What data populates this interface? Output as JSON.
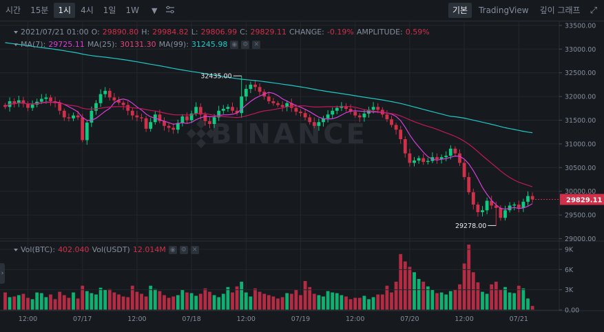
{
  "toolbar": {
    "intervals": [
      "시간",
      "15분",
      "1시",
      "4시",
      "1일",
      "1W"
    ],
    "active_interval": "1시",
    "views": [
      "기본",
      "TradingView",
      "깊이 그래프"
    ],
    "active_view": "기본"
  },
  "legend": {
    "date": "2021/07/21 01:00",
    "o_label": "O:",
    "o": "29890.80",
    "h_label": "H:",
    "h": "29984.82",
    "l_label": "L:",
    "l": "29806.99",
    "c_label": "C:",
    "c": "29829.11",
    "change_label": "CHANGE:",
    "change": "-0.19%",
    "amp_label": "AMPLITUDE:",
    "amp": "0.59%",
    "ma7_label": "MA(7):",
    "ma7": "29725.11",
    "ma25_label": "MA(25):",
    "ma25": "30131.30",
    "ma99_label": "MA(99):",
    "ma99": "31245.98",
    "vol_btc_label": "Vol(BTC):",
    "vol_btc": "402.040",
    "vol_usdt_label": "Vol(USDT)",
    "vol_usdt": "12.014M"
  },
  "watermark": "BINANCE",
  "colors": {
    "up": "#0ecb81",
    "down": "#cf304a",
    "ma7": "#d93fd9",
    "ma25": "#c2185b",
    "ma99": "#1dc9c9",
    "bg": "#161a1e",
    "grid": "#23272d"
  },
  "chart_data": {
    "type": "candlestick",
    "price_axis": {
      "ticks": [
        "33500.00",
        "33000.00",
        "32500.00",
        "32000.00",
        "31500.00",
        "31000.00",
        "30500.00",
        "30000.00",
        "29500.00",
        "29000.00"
      ],
      "range": [
        28950,
        33600
      ]
    },
    "volume_axis": {
      "ticks": [
        "9K",
        "6K",
        "3K",
        "0.00"
      ],
      "range": [
        0,
        9000
      ]
    },
    "x_ticks": [
      {
        "i": 5,
        "label": "12:00"
      },
      {
        "i": 17,
        "label": "07/17"
      },
      {
        "i": 29,
        "label": "12:00"
      },
      {
        "i": 41,
        "label": "07/18"
      },
      {
        "i": 53,
        "label": "12:00"
      },
      {
        "i": 65,
        "label": "07/19"
      },
      {
        "i": 77,
        "label": "12:00"
      },
      {
        "i": 89,
        "label": "07/20"
      },
      {
        "i": 101,
        "label": "12:00"
      },
      {
        "i": 113,
        "label": "07/21"
      }
    ],
    "current_price": "29829.11",
    "annotations": [
      {
        "label": "32435.00",
        "i": 52,
        "value": 32435
      },
      {
        "label": "29278.00",
        "i": 108,
        "value": 29278
      }
    ],
    "closes": [
      31780,
      31900,
      31860,
      31920,
      31850,
      31760,
      31830,
      31890,
      31950,
      31980,
      31900,
      31860,
      31700,
      31560,
      31540,
      31600,
      31560,
      31080,
      31450,
      31700,
      31860,
      32050,
      32120,
      31980,
      31920,
      31870,
      31820,
      31700,
      31600,
      31560,
      31540,
      31320,
      31460,
      31620,
      31480,
      31380,
      31340,
      31300,
      31440,
      31580,
      31500,
      31640,
      31780,
      31620,
      31480,
      31420,
      31560,
      31700,
      31740,
      31780,
      31700,
      31650,
      32000,
      32160,
      32250,
      32200,
      32100,
      32000,
      31900,
      31860,
      31820,
      31780,
      31860,
      31760,
      31680,
      31650,
      31560,
      31460,
      31380,
      31460,
      31540,
      31620,
      31700,
      31760,
      31800,
      31740,
      31680,
      31600,
      31560,
      31640,
      31720,
      31780,
      31720,
      31620,
      31520,
      31400,
      31300,
      31100,
      30800,
      30600,
      30650,
      30700,
      30620,
      30640,
      30720,
      30680,
      30720,
      30750,
      30900,
      30800,
      30600,
      30300,
      29980,
      29720,
      29560,
      29600,
      29800,
      29700,
      29650,
      29440,
      29600,
      29700,
      29720,
      29650,
      29780,
      29900,
      29829
    ],
    "volumes": [
      2600,
      1900,
      2000,
      2200,
      2400,
      1800,
      1600,
      2600,
      2500,
      1900,
      2300,
      1600,
      2700,
      2200,
      1800,
      2600,
      1700,
      3600,
      2800,
      2500,
      2300,
      3300,
      3000,
      3100,
      2600,
      2300,
      2000,
      1900,
      3600,
      2700,
      2400,
      2000,
      3600,
      3100,
      2800,
      2200,
      1800,
      2000,
      2200,
      3000,
      2600,
      2500,
      2100,
      2400,
      3200,
      2700,
      2200,
      1900,
      2400,
      3400,
      2600,
      3500,
      4200,
      2600,
      2000,
      3200,
      2700,
      2400,
      2200,
      2000,
      1700,
      1900,
      2500,
      2400,
      3000,
      2200,
      4300,
      3400,
      2400,
      2200,
      2000,
      2800,
      2600,
      2500,
      2200,
      2000,
      1600,
      1800,
      1800,
      2100,
      1600,
      1900,
      2300,
      2300,
      3600,
      2600,
      4200,
      8300,
      7200,
      6400,
      5600,
      4600,
      4200,
      3500,
      3000,
      2500,
      2600,
      2300,
      2800,
      3000,
      3800,
      6900,
      9700,
      5600,
      4100,
      2700,
      2400,
      3800,
      4200,
      3000,
      3400,
      2600,
      2500,
      3600,
      3200,
      1700,
      600
    ]
  }
}
